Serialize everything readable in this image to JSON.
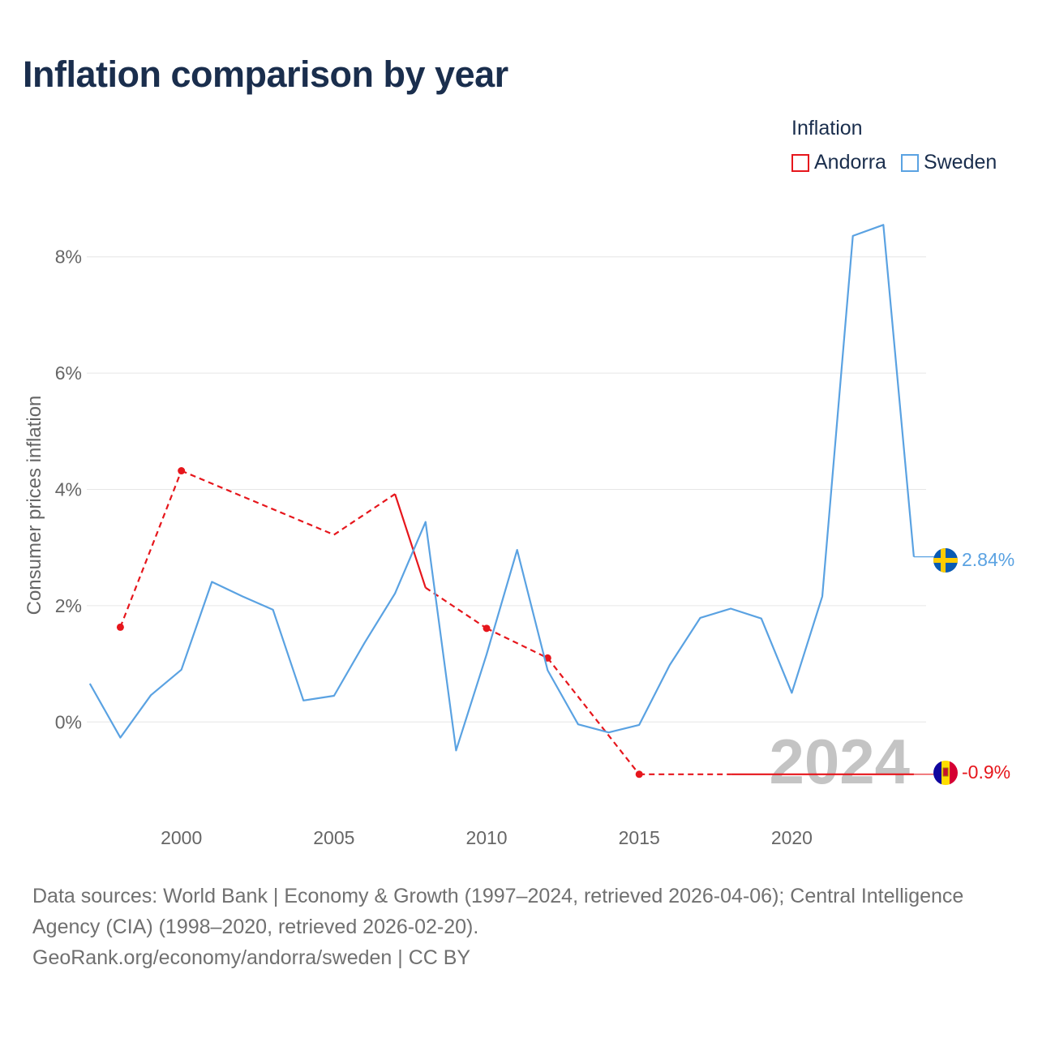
{
  "title": "Inflation comparison by year",
  "legend": {
    "title": "Inflation",
    "items": [
      {
        "name": "Andorra",
        "color": "#e6161c"
      },
      {
        "name": "Sweden",
        "color": "#5aa2e2"
      }
    ]
  },
  "footer": {
    "line1": "Data sources: World Bank | Economy & Growth (1997–2024, retrieved 2026-04-06); Central Intelligence",
    "line2": "Agency (CIA) (1998–2020, retrieved 2026-02-20).",
    "line3": "GeoRank.org/economy/andorra/sweden | CC BY"
  },
  "chart_data": {
    "type": "line",
    "title": "Inflation comparison by year",
    "xlabel": "",
    "ylabel": "Consumer prices inflation",
    "xlim": [
      1996.9,
      2024.4
    ],
    "ylim": [
      -1.6,
      9.0
    ],
    "x_ticks": [
      2000,
      2005,
      2010,
      2015,
      2020
    ],
    "x_tick_labels": [
      "2000",
      "2005",
      "2010",
      "2015",
      "2020"
    ],
    "y_ticks": [
      0,
      2,
      4,
      6,
      8
    ],
    "y_tick_labels": [
      "0%",
      "2%",
      "4%",
      "6%",
      "8%"
    ],
    "grid": true,
    "current_year_label": "2024",
    "series": [
      {
        "name": "Andorra",
        "color": "#e6161c",
        "points": [
          {
            "x": 1998,
            "y": 1.63,
            "marker": true
          },
          {
            "x": 2000,
            "y": 4.32,
            "marker": true
          },
          {
            "x": 2005,
            "y": 3.22,
            "marker": false
          },
          {
            "x": 2007,
            "y": 3.92,
            "marker": false
          },
          {
            "x": 2008,
            "y": 2.31,
            "marker": false
          },
          {
            "x": 2010,
            "y": 1.61,
            "marker": true
          },
          {
            "x": 2012,
            "y": 1.1,
            "marker": true
          },
          {
            "x": 2015,
            "y": -0.9,
            "marker": true
          },
          {
            "x": 2018,
            "y": -0.9,
            "marker": false
          },
          {
            "x": 2024,
            "y": -0.9,
            "marker": false
          }
        ],
        "segment_styles": [
          "dashed",
          "dashed",
          "dashed",
          "solid",
          "dashed",
          "dashed",
          "dashed",
          "dashed",
          "solid"
        ],
        "end_label": "-0.9%"
      },
      {
        "name": "Sweden",
        "color": "#5aa2e2",
        "points": [
          {
            "x": 1997,
            "y": 0.66
          },
          {
            "x": 1998,
            "y": -0.27
          },
          {
            "x": 1999,
            "y": 0.46
          },
          {
            "x": 2000,
            "y": 0.9
          },
          {
            "x": 2001,
            "y": 2.41
          },
          {
            "x": 2002,
            "y": 2.16
          },
          {
            "x": 2003,
            "y": 1.93
          },
          {
            "x": 2004,
            "y": 0.37
          },
          {
            "x": 2005,
            "y": 0.45
          },
          {
            "x": 2006,
            "y": 1.36
          },
          {
            "x": 2007,
            "y": 2.21
          },
          {
            "x": 2008,
            "y": 3.44
          },
          {
            "x": 2009,
            "y": -0.49
          },
          {
            "x": 2010,
            "y": 1.16
          },
          {
            "x": 2011,
            "y": 2.96
          },
          {
            "x": 2012,
            "y": 0.89
          },
          {
            "x": 2013,
            "y": -0.04
          },
          {
            "x": 2014,
            "y": -0.18
          },
          {
            "x": 2015,
            "y": -0.05
          },
          {
            "x": 2016,
            "y": 0.98
          },
          {
            "x": 2017,
            "y": 1.79
          },
          {
            "x": 2018,
            "y": 1.95
          },
          {
            "x": 2019,
            "y": 1.78
          },
          {
            "x": 2020,
            "y": 0.5
          },
          {
            "x": 2021,
            "y": 2.16
          },
          {
            "x": 2022,
            "y": 8.36
          },
          {
            "x": 2023,
            "y": 8.55
          },
          {
            "x": 2024,
            "y": 2.84
          }
        ],
        "end_label": "2.84%"
      }
    ]
  }
}
